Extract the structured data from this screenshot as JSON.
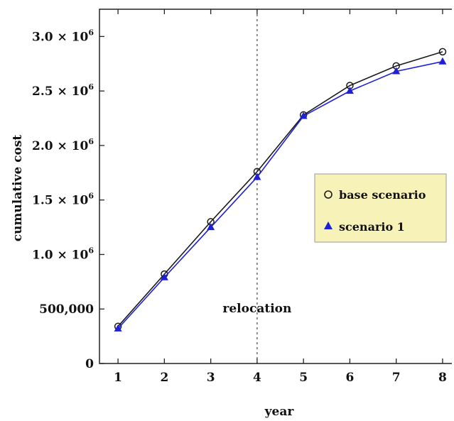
{
  "chart_data": {
    "type": "line",
    "title": "",
    "xlabel": "year",
    "ylabel": "cumulative cost",
    "x": [
      1,
      2,
      3,
      4,
      5,
      6,
      7,
      8
    ],
    "xlim": [
      0.6,
      8.2
    ],
    "ylim": [
      0,
      3250000
    ],
    "x_ticks": [
      1,
      2,
      3,
      4,
      5,
      6,
      7,
      8
    ],
    "y_ticks": [
      {
        "value": 0,
        "mantissa": "0",
        "exponent": ""
      },
      {
        "value": 500000,
        "mantissa": "500,000",
        "exponent": ""
      },
      {
        "value": 1000000,
        "mantissa": "1.0 × 10",
        "exponent": "6"
      },
      {
        "value": 1500000,
        "mantissa": "1.5 × 10",
        "exponent": "6"
      },
      {
        "value": 2000000,
        "mantissa": "2.0 × 10",
        "exponent": "6"
      },
      {
        "value": 2500000,
        "mantissa": "2.5 × 10",
        "exponent": "6"
      },
      {
        "value": 3000000,
        "mantissa": "3.0 × 10",
        "exponent": "6"
      }
    ],
    "series": [
      {
        "name": "base scenario",
        "marker": "circle",
        "color": "#1a1a1a",
        "values": [
          340000,
          820000,
          1300000,
          1760000,
          2280000,
          2550000,
          2730000,
          2860000
        ]
      },
      {
        "name": "scenario 1",
        "marker": "triangle",
        "color": "#1f1fd6",
        "values": [
          320000,
          790000,
          1250000,
          1710000,
          2270000,
          2500000,
          2680000,
          2770000
        ]
      }
    ],
    "annotations": [
      {
        "type": "vline",
        "x": 4,
        "label": "relocation",
        "label_y": 470000
      }
    ],
    "legend": {
      "placement": "right",
      "background": "#f7f3b8"
    },
    "grid": false
  }
}
